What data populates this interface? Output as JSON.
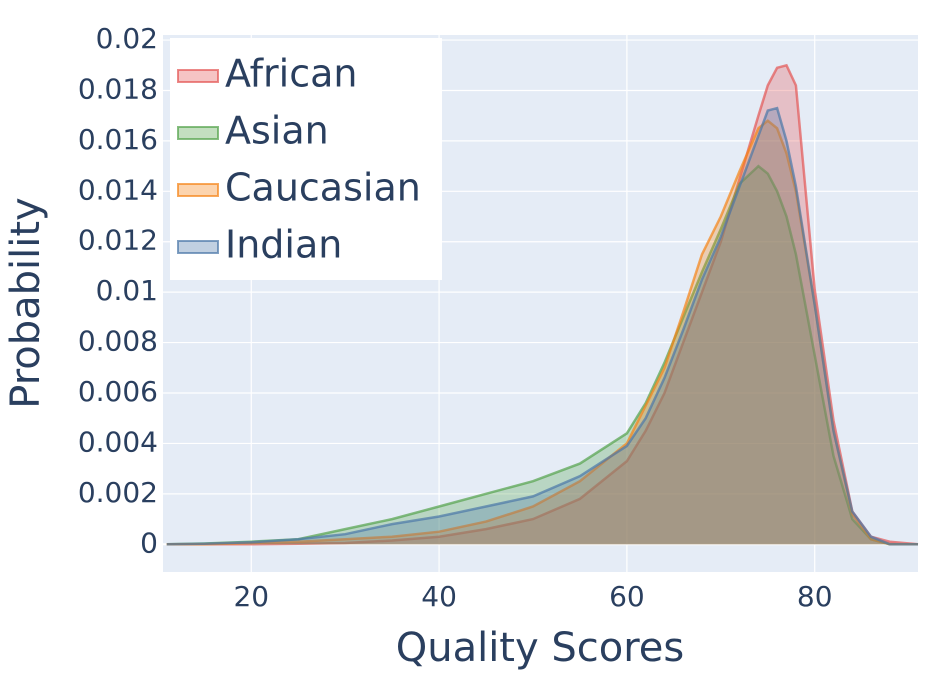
{
  "chart_data": {
    "type": "area",
    "x_label": "Quality Scores",
    "y_label": "Probability",
    "x": [
      11,
      15,
      20,
      25,
      30,
      35,
      40,
      45,
      50,
      55,
      60,
      62,
      64,
      66,
      68,
      70,
      72,
      74,
      75,
      76,
      77,
      78,
      80,
      82,
      84,
      86,
      88,
      91
    ],
    "series": [
      {
        "name": "African",
        "color": "#e45756",
        "values": [
          0,
          0,
          0,
          2e-05,
          5e-05,
          0.00015,
          0.0003,
          0.0006,
          0.001,
          0.0018,
          0.0033,
          0.0045,
          0.006,
          0.008,
          0.01,
          0.012,
          0.0145,
          0.017,
          0.0182,
          0.0189,
          0.019,
          0.0182,
          0.0101,
          0.0049,
          0.0013,
          0.0003,
          0.0001,
          0
        ]
      },
      {
        "name": "Asian",
        "color": "#54a24b",
        "values": [
          0,
          3e-05,
          0.0001,
          0.0002,
          0.0006,
          0.001,
          0.0015,
          0.002,
          0.0025,
          0.0032,
          0.0044,
          0.0056,
          0.0072,
          0.009,
          0.0108,
          0.0125,
          0.0143,
          0.015,
          0.0147,
          0.014,
          0.013,
          0.0115,
          0.0075,
          0.0035,
          0.001,
          0.0002,
          0,
          0
        ]
      },
      {
        "name": "Caucasian",
        "color": "#f58518",
        "values": [
          0,
          0,
          5e-05,
          0.0001,
          0.0002,
          0.0003,
          0.0005,
          0.0009,
          0.0015,
          0.0025,
          0.004,
          0.0055,
          0.007,
          0.0092,
          0.0115,
          0.013,
          0.0148,
          0.0165,
          0.0168,
          0.0165,
          0.0155,
          0.014,
          0.0095,
          0.0045,
          0.0012,
          0.0002,
          0,
          0
        ]
      },
      {
        "name": "Indian",
        "color": "#4c78a8",
        "values": [
          0,
          2e-05,
          8e-05,
          0.0002,
          0.0004,
          0.0008,
          0.0011,
          0.0015,
          0.0019,
          0.0027,
          0.0039,
          0.005,
          0.0066,
          0.0085,
          0.0105,
          0.0122,
          0.0142,
          0.0162,
          0.0172,
          0.0173,
          0.016,
          0.0142,
          0.0095,
          0.0045,
          0.0013,
          0.0003,
          0,
          0
        ]
      }
    ],
    "xlim": [
      10.6,
      91
    ],
    "ylim": [
      -0.0011,
      0.0202
    ],
    "xticks": [
      20,
      40,
      60,
      80
    ],
    "yticks": [
      0,
      0.002,
      0.004,
      0.006,
      0.008,
      0.01,
      0.012,
      0.014,
      0.016,
      0.018,
      0.02
    ],
    "grid": true,
    "legend": "top-left"
  }
}
